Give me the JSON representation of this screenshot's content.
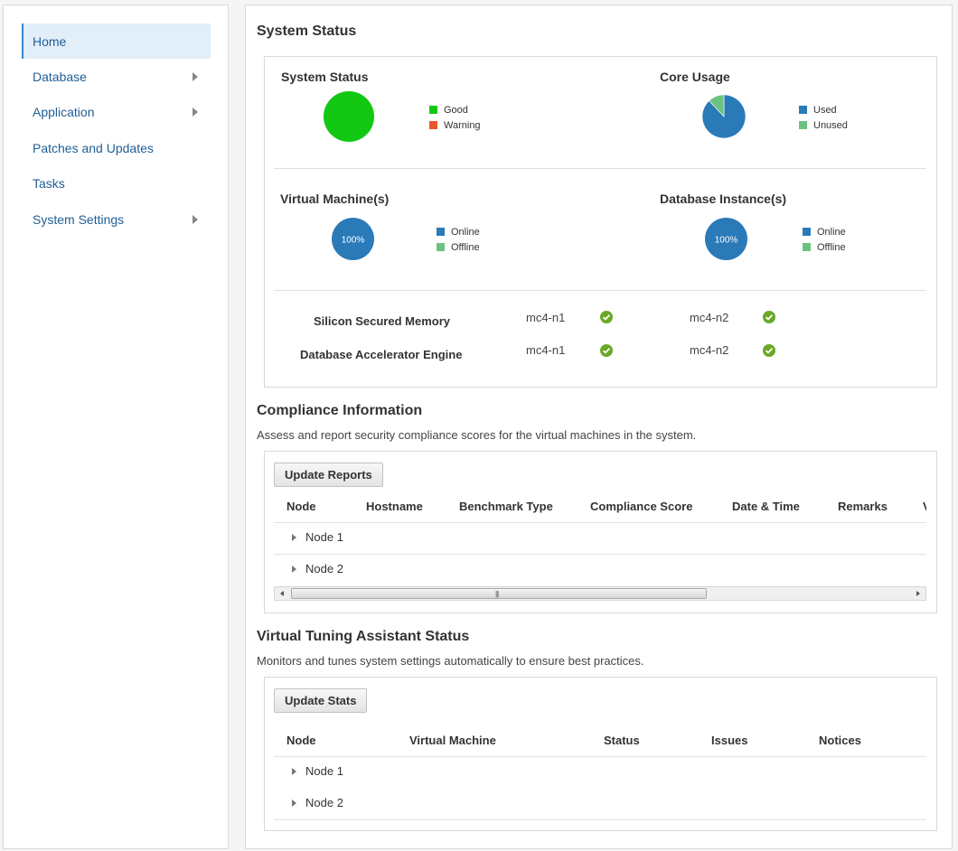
{
  "sidebar": {
    "items": [
      {
        "label": "Home",
        "active": true,
        "has_submenu": false
      },
      {
        "label": "Database",
        "active": false,
        "has_submenu": true
      },
      {
        "label": "Application",
        "active": false,
        "has_submenu": true
      },
      {
        "label": "Patches and Updates",
        "active": false,
        "has_submenu": false
      },
      {
        "label": "Tasks",
        "active": false,
        "has_submenu": false
      },
      {
        "label": "System Settings",
        "active": false,
        "has_submenu": true
      }
    ]
  },
  "system_status": {
    "title": "System Status",
    "charts": [
      {
        "title": "System Status",
        "legend": [
          {
            "label": "Good",
            "color": "#12c812"
          },
          {
            "label": "Warning",
            "color": "#e8572a"
          }
        ],
        "slices": [
          {
            "label": "Good",
            "value": 100
          },
          {
            "label": "Warning",
            "value": 0
          }
        ]
      },
      {
        "title": "Core Usage",
        "legend": [
          {
            "label": "Used",
            "color": "#2a7ab8"
          },
          {
            "label": "Unused",
            "color": "#6cc283"
          }
        ],
        "slices": [
          {
            "label": "Used",
            "value": 88
          },
          {
            "label": "Unused",
            "value": 12
          }
        ]
      },
      {
        "title": "Virtual Machine(s)",
        "center_label": "100%",
        "legend": [
          {
            "label": "Online",
            "color": "#2a7ab8"
          },
          {
            "label": "Offline",
            "color": "#6cc283"
          }
        ],
        "slices": [
          {
            "label": "Online",
            "value": 100
          },
          {
            "label": "Offline",
            "value": 0
          }
        ]
      },
      {
        "title": "Database Instance(s)",
        "center_label": "100%",
        "legend": [
          {
            "label": "Online",
            "color": "#2a7ab8"
          },
          {
            "label": "Offline",
            "color": "#6cc283"
          }
        ],
        "slices": [
          {
            "label": "Online",
            "value": 100
          },
          {
            "label": "Offline",
            "value": 0
          }
        ]
      }
    ],
    "features": [
      {
        "label": "Silicon Secured Memory",
        "nodes": [
          {
            "name": "mc4-n1",
            "status": "ok"
          },
          {
            "name": "mc4-n2",
            "status": "ok"
          }
        ]
      },
      {
        "label": "Database Accelerator Engine",
        "nodes": [
          {
            "name": "mc4-n1",
            "status": "ok"
          },
          {
            "name": "mc4-n2",
            "status": "ok"
          }
        ]
      }
    ]
  },
  "compliance": {
    "title": "Compliance Information",
    "description": "Assess and report security compliance scores for the virtual machines in the system.",
    "button_label": "Update Reports",
    "columns": [
      "Node",
      "Hostname",
      "Benchmark Type",
      "Compliance Score",
      "Date & Time",
      "Remarks",
      "V"
    ],
    "rows": [
      {
        "label": "Node 1"
      },
      {
        "label": "Node 2"
      }
    ],
    "scroll_grip": "|||"
  },
  "tuning": {
    "title": "Virtual Tuning Assistant Status",
    "description": "Monitors and tunes system settings automatically to ensure best practices.",
    "button_label": "Update Stats",
    "columns": [
      "Node",
      "Virtual Machine",
      "Status",
      "Issues",
      "Notices"
    ],
    "rows": [
      {
        "label": "Node 1"
      },
      {
        "label": "Node 2"
      }
    ]
  },
  "colors": {
    "accent": "#1f5e96",
    "check_green": "#6aa829"
  }
}
